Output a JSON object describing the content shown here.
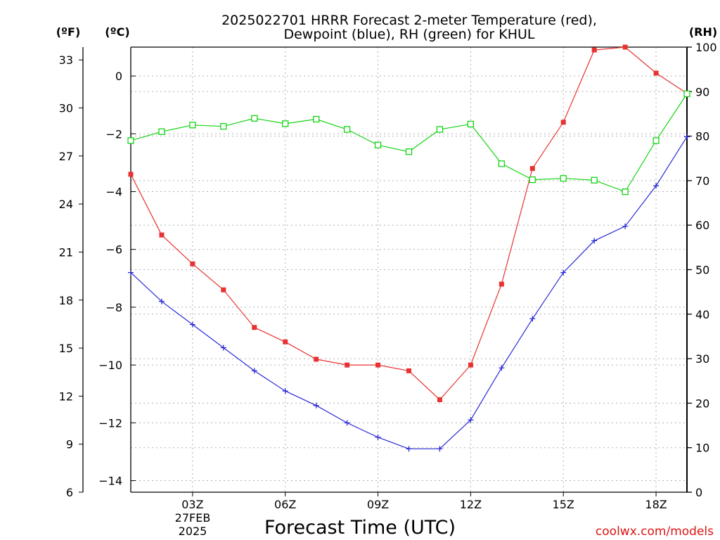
{
  "chart_data": {
    "type": "line",
    "title_line1": "2025022701 HRRR Forecast 2-meter Temperature (red),",
    "title_line2": "Dewpoint (blue), RH (green) for KHUL",
    "xlabel": "Forecast Time (UTC)",
    "date_label_1": "27FEB",
    "date_label_2": "2025",
    "unit_f": "(ºF)",
    "unit_c": "(ºC)",
    "unit_rh": "(RH)",
    "credit": "coolwx.com/models",
    "x_hours": [
      1,
      2,
      3,
      4,
      5,
      6,
      7,
      8,
      9,
      10,
      11,
      12,
      13,
      14,
      15,
      16,
      17,
      18,
      19
    ],
    "xlim": [
      1,
      19
    ],
    "x_ticks": [
      {
        "hour": 3,
        "label": "03Z"
      },
      {
        "hour": 6,
        "label": "06Z"
      },
      {
        "hour": 9,
        "label": "09Z"
      },
      {
        "hour": 12,
        "label": "12Z"
      },
      {
        "hour": 15,
        "label": "15Z"
      },
      {
        "hour": 18,
        "label": "18Z"
      }
    ],
    "celsius_axis": {
      "range": [
        -14.4,
        1.0
      ],
      "ticks": [
        0,
        -2,
        -4,
        -6,
        -8,
        -10,
        -12,
        -14
      ]
    },
    "fahrenheit_axis": {
      "range": [
        6,
        33.8
      ],
      "ticks": [
        33,
        30,
        27,
        24,
        21,
        18,
        15,
        12,
        9,
        6
      ]
    },
    "rh_axis": {
      "range": [
        0,
        100
      ],
      "ticks": [
        0,
        10,
        20,
        30,
        40,
        50,
        60,
        70,
        80,
        90,
        100
      ]
    },
    "grid": true,
    "series": [
      {
        "name": "Temperature (red)",
        "axis": "celsius",
        "color": "#e83232",
        "marker": "filled-square",
        "values": [
          -3.4,
          -5.5,
          -6.5,
          -7.4,
          -8.7,
          -9.2,
          -9.8,
          -10.0,
          -10.0,
          -10.2,
          -11.2,
          -10.0,
          -7.2,
          -3.2,
          -1.6,
          0.9,
          1.0,
          0.1,
          -0.6
        ]
      },
      {
        "name": "Dewpoint (blue)",
        "axis": "celsius",
        "color": "#2a2ad6",
        "marker": "plus",
        "values": [
          -6.8,
          -7.8,
          -8.6,
          -9.4,
          -10.2,
          -10.9,
          -11.4,
          -12.0,
          -12.5,
          -12.9,
          -12.9,
          -11.9,
          -10.1,
          -8.4,
          -6.8,
          -5.7,
          -5.2,
          -3.8,
          -2.1
        ]
      },
      {
        "name": "RH (green)",
        "axis": "rh",
        "color": "#14d414",
        "marker": "open-square",
        "values": [
          79,
          81,
          82.5,
          82.2,
          84,
          82.8,
          83.8,
          81.5,
          78,
          76.5,
          81.5,
          82.7,
          73.8,
          70.2,
          70.5,
          70.1,
          67.5,
          79,
          89.5
        ]
      }
    ]
  }
}
